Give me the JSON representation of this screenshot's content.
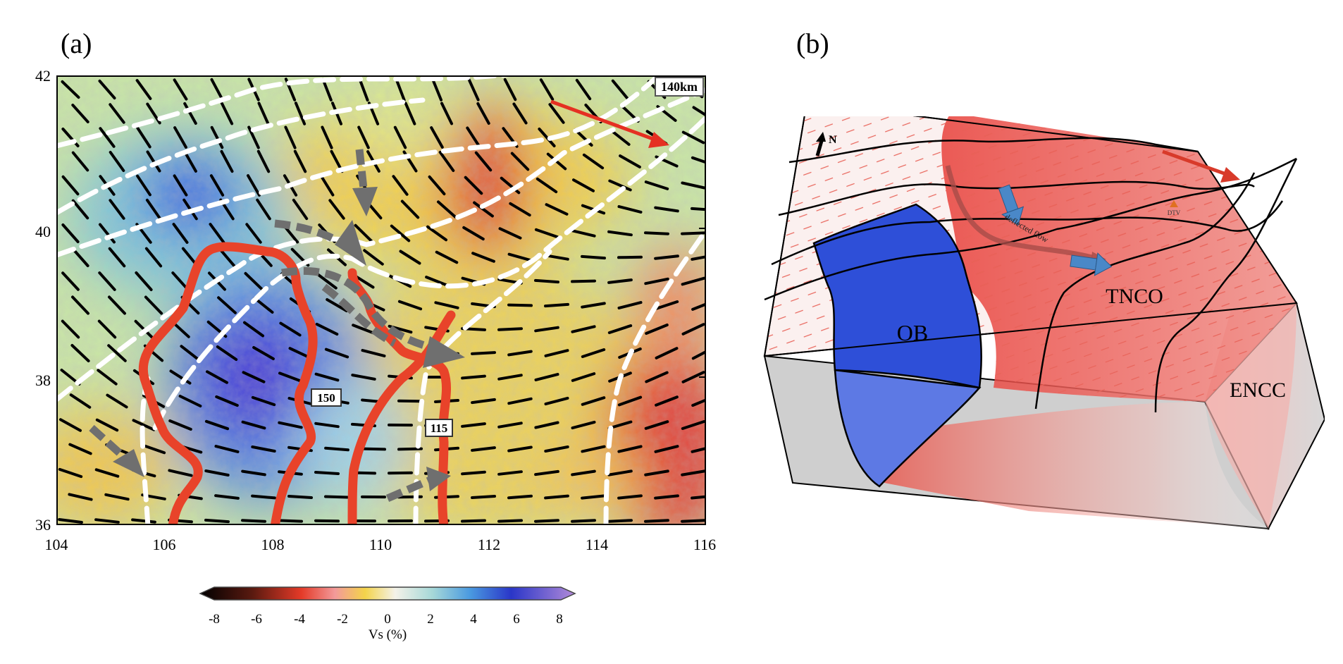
{
  "panels": {
    "a": {
      "label": "(a)"
    },
    "b": {
      "label": "(b)"
    }
  },
  "map": {
    "depth_label": "140km",
    "x_ticks": [
      "104",
      "106",
      "108",
      "110",
      "112",
      "114",
      "116"
    ],
    "y_ticks": [
      "42",
      "40",
      "38",
      "36"
    ],
    "contour_labels": [
      "150",
      "115"
    ],
    "colors": {
      "anomaly_red": "#e8321e",
      "anomaly_blue": "#1f3fe0",
      "boundary": "#ffffff",
      "contour": "#e8432a",
      "flow_arrow": "#6f6f6f",
      "motion_arrow": "#e53022"
    }
  },
  "colorbar": {
    "ticks": [
      "-8",
      "-6",
      "-4",
      "-2",
      "0",
      "2",
      "4",
      "6",
      "8"
    ],
    "title": "Vs (%)"
  },
  "block": {
    "north_label": "N",
    "labels": {
      "ob": "OB",
      "tnco": "TNCO",
      "encc": "ENCC",
      "flow": "deflected flow",
      "dtv": "DTV"
    },
    "colors": {
      "blue_block": "#2e4fd8",
      "red_block": "#e85a50",
      "arrow_blue": "#4a88c8",
      "arrow_red": "#d83a2a"
    }
  }
}
